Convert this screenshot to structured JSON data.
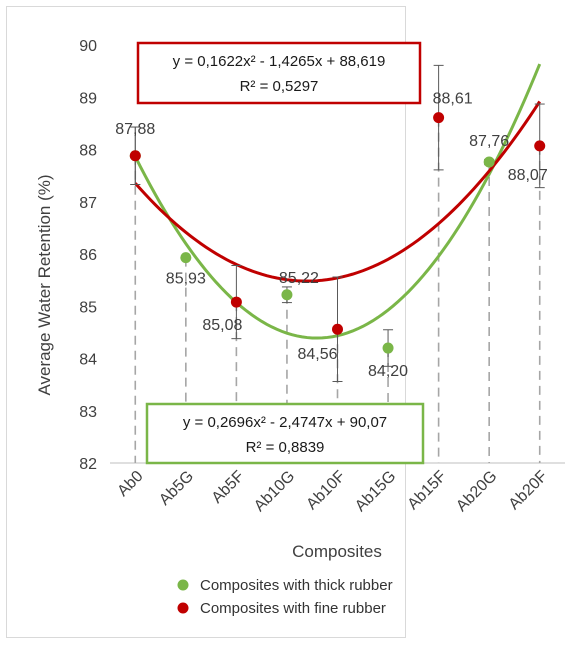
{
  "chart_data": {
    "type": "scatter",
    "title": "",
    "xlabel": "Composites",
    "ylabel": "Average Water Retention (%)",
    "ylim": [
      82,
      90
    ],
    "yticks": [
      82,
      83,
      84,
      85,
      86,
      87,
      88,
      89,
      90
    ],
    "categories": [
      "Ab0",
      "Ab5G",
      "Ab5F",
      "Ab10G",
      "Ab10F",
      "Ab15G",
      "Ab15F",
      "Ab20G",
      "Ab20F"
    ],
    "grid": false,
    "legend_position": "bottom",
    "series": [
      {
        "name": "Composites with thick rubber",
        "color": "#7ab648",
        "points": [
          {
            "x": "Ab0",
            "y": 87.88,
            "label": "87,88",
            "error": 0.55
          },
          {
            "x": "Ab5G",
            "y": 85.93,
            "label": "85,93"
          },
          {
            "x": "Ab10G",
            "y": 85.22,
            "label": "85,22",
            "error": 0.15
          },
          {
            "x": "Ab15G",
            "y": 84.2,
            "label": "84,20",
            "error": 0.35
          },
          {
            "x": "Ab20G",
            "y": 87.76,
            "label": "87,76",
            "error": 0.05
          }
        ],
        "trendline": {
          "equation": "y = 0,2696x² - 2,4747x + 90,07",
          "r2": "R² = 0,8839",
          "a": 0.2696,
          "b": -2.4747,
          "c": 90.07
        }
      },
      {
        "name": "Composites with fine rubber",
        "color": "#c00000",
        "points": [
          {
            "x": "Ab0",
            "y": 87.88,
            "error": 0.55
          },
          {
            "x": "Ab5F",
            "y": 85.08,
            "label": "85,08",
            "error": 0.7
          },
          {
            "x": "Ab10F",
            "y": 84.56,
            "label": "84,56",
            "error": 1.0
          },
          {
            "x": "Ab15F",
            "y": 88.61,
            "label": "88,61",
            "error": 1.0
          },
          {
            "x": "Ab20F",
            "y": 88.07,
            "label": "88,07",
            "error": 0.8
          }
        ],
        "trendline": {
          "equation": "y = 0,1622x² - 1,4265x + 88,619",
          "r2": "R² = 0,5297",
          "a": 0.1622,
          "b": -1.4265,
          "c": 88.619
        }
      }
    ]
  }
}
